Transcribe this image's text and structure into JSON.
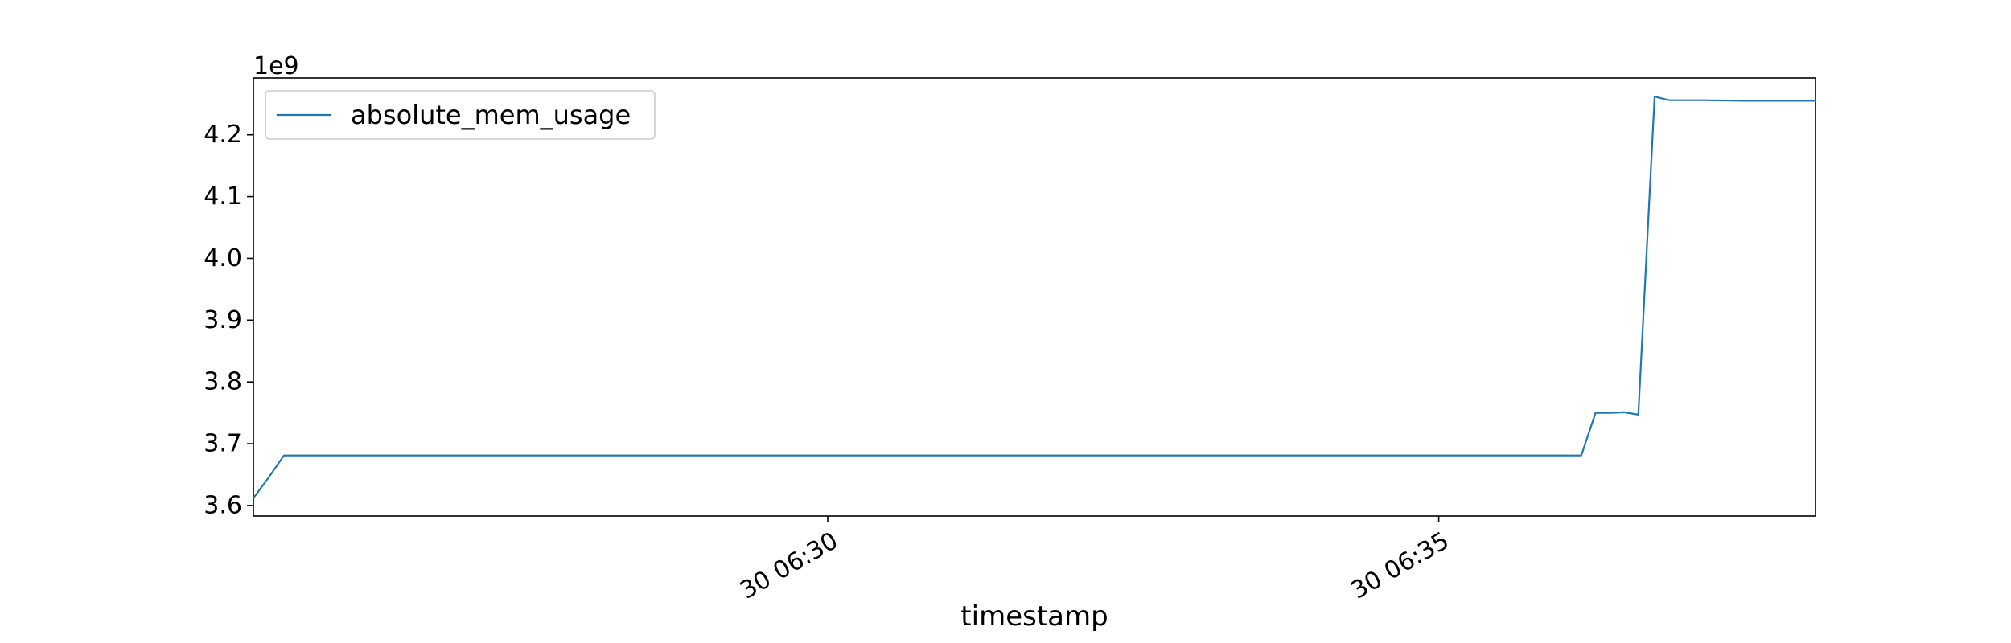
{
  "chart_data": {
    "type": "line",
    "title": "",
    "xlabel": "timestamp",
    "ylabel": "",
    "y_offset_label": "1e9",
    "y_multiplier": 1000000000,
    "xlim": [
      "30 06:25:18",
      "30 06:38:05"
    ],
    "ylim": [
      3.583,
      4.292
    ],
    "x_ticks": [
      {
        "value": "30 06:30:00",
        "label": "30 06:30"
      },
      {
        "value": "30 06:35:00",
        "label": "30 06:35"
      }
    ],
    "y_ticks": [
      3.6,
      3.7,
      3.8,
      3.9,
      4.0,
      4.1,
      4.2
    ],
    "y_tick_labels": [
      "3.6",
      "3.7",
      "3.8",
      "3.9",
      "4.0",
      "4.1",
      "4.2"
    ],
    "grid": false,
    "legend": "top-left",
    "series": [
      {
        "name": "absolute_mem_usage",
        "color": "#1f77b4",
        "x": [
          "30 06:25:18",
          "30 06:25:25",
          "30 06:25:33",
          "30 06:26:34",
          "30 06:27:34",
          "30 06:28:34",
          "30 06:29:34",
          "30 06:30:34",
          "30 06:31:34",
          "30 06:32:34",
          "30 06:33:34",
          "30 06:34:34",
          "30 06:35:34",
          "30 06:36:10",
          "30 06:36:17",
          "30 06:36:24",
          "30 06:36:31",
          "30 06:36:38",
          "30 06:36:46",
          "30 06:36:53",
          "30 06:37:10",
          "30 06:37:30",
          "30 06:38:05"
        ],
        "values": [
          3.612,
          3.643,
          3.681,
          3.681,
          3.681,
          3.681,
          3.681,
          3.681,
          3.681,
          3.681,
          3.681,
          3.681,
          3.681,
          3.681,
          3.75,
          3.75,
          3.751,
          3.747,
          4.262,
          4.256,
          4.256,
          4.255,
          4.255
        ]
      }
    ]
  }
}
